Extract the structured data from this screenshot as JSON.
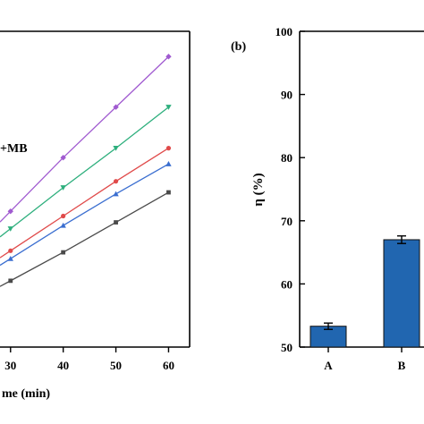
{
  "chart_data": [
    {
      "type": "line",
      "panel_label": "",
      "xlabel": "me (min)",
      "ylabel": "",
      "x_ticks": [
        "30",
        "40",
        "50",
        "60"
      ],
      "xlim": [
        28,
        64
      ],
      "ylim": [
        0,
        100
      ],
      "legend_fragments": [
        "+MB"
      ],
      "grid": false,
      "series": [
        {
          "color": "#a05ad0",
          "marker": "diamond",
          "x": [
            30,
            40,
            50,
            60
          ],
          "y": [
            43,
            60,
            76,
            92
          ]
        },
        {
          "color": "#2eaf7d",
          "marker": "triangle-down",
          "x": [
            30,
            40,
            50,
            60
          ],
          "y": [
            37.5,
            50.5,
            63,
            76
          ]
        },
        {
          "color": "#e04a4a",
          "marker": "circle",
          "x": [
            30,
            40,
            50,
            60
          ],
          "y": [
            30.5,
            41.5,
            52.5,
            63
          ]
        },
        {
          "color": "#3a6ed0",
          "marker": "triangle-up",
          "x": [
            30,
            40,
            50,
            60
          ],
          "y": [
            28,
            38.5,
            48.5,
            58
          ]
        },
        {
          "color": "#4a4a4a",
          "marker": "square",
          "x": [
            30,
            40,
            50,
            60
          ],
          "y": [
            21,
            30,
            39.5,
            49
          ]
        }
      ]
    },
    {
      "type": "bar",
      "panel_label": "(b)",
      "ylabel": "η (%)",
      "categories": [
        "A",
        "B"
      ],
      "values": [
        53.3,
        67
      ],
      "errors": [
        0.5,
        0.6
      ],
      "ylim": [
        50,
        100
      ],
      "y_ticks": [
        "50",
        "60",
        "70",
        "80",
        "90",
        "100"
      ],
      "bar_color": "#2166b0",
      "grid": false
    }
  ]
}
